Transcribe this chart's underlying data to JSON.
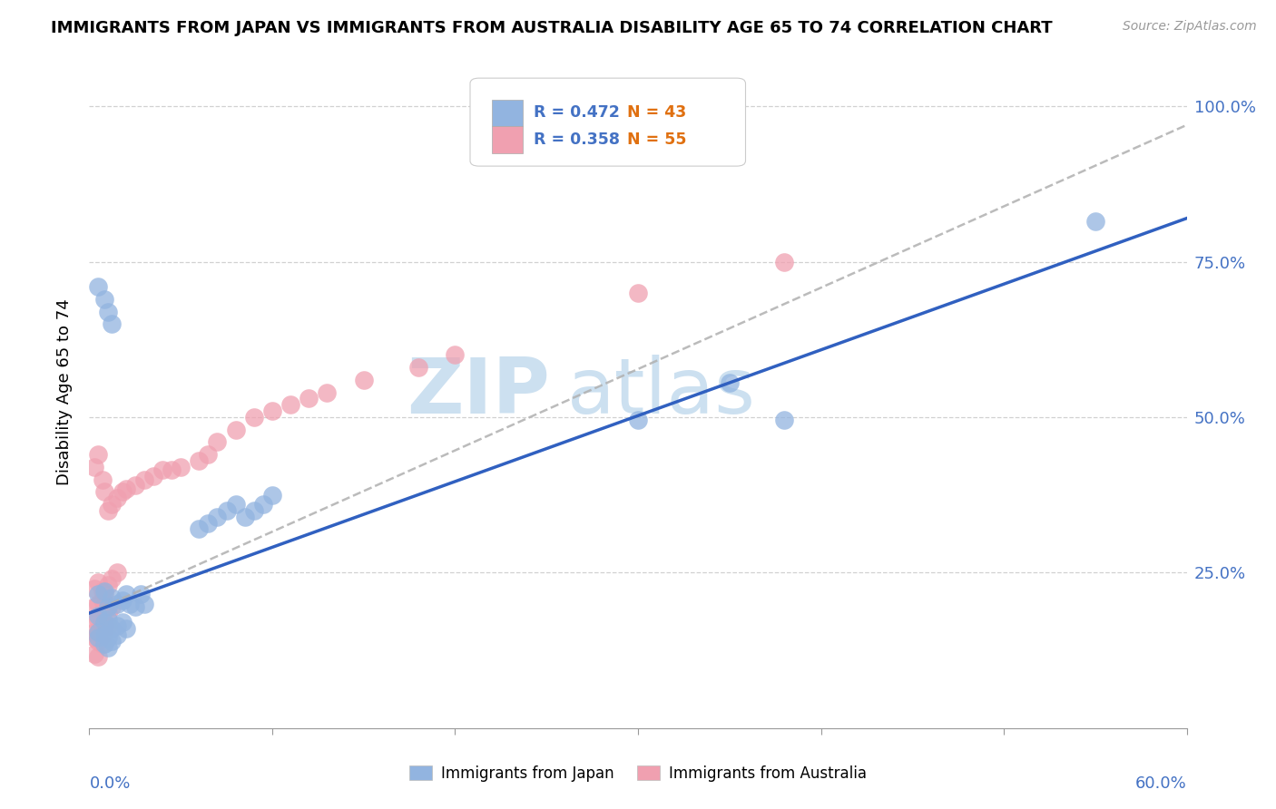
{
  "title": "IMMIGRANTS FROM JAPAN VS IMMIGRANTS FROM AUSTRALIA DISABILITY AGE 65 TO 74 CORRELATION CHART",
  "source": "Source: ZipAtlas.com",
  "ylabel": "Disability Age 65 to 74",
  "ytick_values": [
    0.25,
    0.5,
    0.75,
    1.0
  ],
  "ytick_labels": [
    "25.0%",
    "50.0%",
    "75.0%",
    "100.0%"
  ],
  "xlim": [
    0.0,
    0.6
  ],
  "ylim": [
    0.0,
    1.08
  ],
  "legend_r1": "R = 0.472",
  "legend_n1": "N = 43",
  "legend_r2": "R = 0.358",
  "legend_n2": "N = 55",
  "legend_label1": "Immigrants from Japan",
  "legend_label2": "Immigrants from Australia",
  "japan_color": "#92b4e0",
  "australia_color": "#f0a0b0",
  "trend_blue": "#3060c0",
  "trend_gray": "#b0b0b0",
  "r_color": "#4472c4",
  "n_color": "#e07010",
  "watermark_color": "#cce0f0",
  "japan_x": [
    0.005,
    0.008,
    0.01,
    0.012,
    0.015,
    0.018,
    0.02,
    0.022,
    0.025,
    0.028,
    0.03,
    0.005,
    0.008,
    0.01,
    0.012,
    0.015,
    0.018,
    0.02,
    0.005,
    0.008,
    0.01,
    0.012,
    0.015,
    0.005,
    0.008,
    0.01,
    0.005,
    0.008,
    0.01,
    0.012,
    0.06,
    0.065,
    0.07,
    0.075,
    0.08,
    0.085,
    0.09,
    0.095,
    0.1,
    0.3,
    0.35,
    0.55,
    0.38
  ],
  "japan_y": [
    0.215,
    0.22,
    0.195,
    0.21,
    0.2,
    0.205,
    0.215,
    0.2,
    0.195,
    0.215,
    0.2,
    0.18,
    0.17,
    0.175,
    0.16,
    0.165,
    0.17,
    0.16,
    0.155,
    0.15,
    0.145,
    0.14,
    0.15,
    0.145,
    0.135,
    0.13,
    0.71,
    0.69,
    0.67,
    0.65,
    0.32,
    0.33,
    0.34,
    0.35,
    0.36,
    0.34,
    0.35,
    0.36,
    0.375,
    0.495,
    0.555,
    0.815,
    0.495
  ],
  "australia_x": [
    0.003,
    0.005,
    0.007,
    0.008,
    0.01,
    0.012,
    0.015,
    0.003,
    0.005,
    0.007,
    0.008,
    0.01,
    0.012,
    0.003,
    0.005,
    0.007,
    0.008,
    0.01,
    0.003,
    0.005,
    0.007,
    0.003,
    0.005,
    0.007,
    0.003,
    0.005,
    0.003,
    0.005,
    0.007,
    0.008,
    0.01,
    0.012,
    0.015,
    0.018,
    0.02,
    0.025,
    0.03,
    0.035,
    0.04,
    0.045,
    0.05,
    0.06,
    0.065,
    0.07,
    0.08,
    0.09,
    0.1,
    0.11,
    0.12,
    0.13,
    0.15,
    0.18,
    0.2,
    0.3,
    0.38
  ],
  "australia_y": [
    0.225,
    0.235,
    0.22,
    0.215,
    0.23,
    0.24,
    0.25,
    0.195,
    0.2,
    0.205,
    0.195,
    0.185,
    0.195,
    0.175,
    0.175,
    0.17,
    0.165,
    0.165,
    0.155,
    0.155,
    0.15,
    0.145,
    0.14,
    0.135,
    0.12,
    0.115,
    0.42,
    0.44,
    0.4,
    0.38,
    0.35,
    0.36,
    0.37,
    0.38,
    0.385,
    0.39,
    0.4,
    0.405,
    0.415,
    0.415,
    0.42,
    0.43,
    0.44,
    0.46,
    0.48,
    0.5,
    0.51,
    0.52,
    0.53,
    0.54,
    0.56,
    0.58,
    0.6,
    0.7,
    0.75
  ],
  "trendline_japan_x0": 0.0,
  "trendline_japan_y0": 0.185,
  "trendline_japan_x1": 0.6,
  "trendline_japan_y1": 0.82,
  "trendline_aus_x0": 0.0,
  "trendline_aus_y0": 0.185,
  "trendline_aus_x1": 0.6,
  "trendline_aus_y1": 0.97
}
